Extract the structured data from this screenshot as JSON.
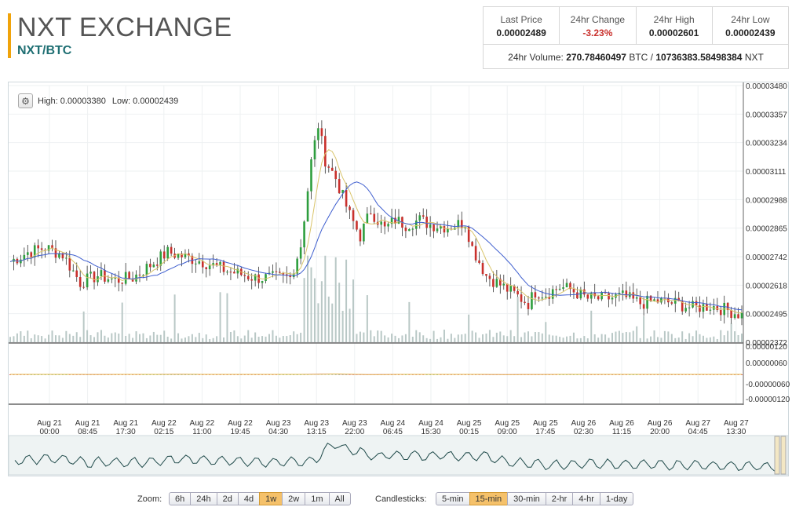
{
  "header": {
    "title": "NXT EXCHANGE",
    "pair": "NXT/BTC"
  },
  "stats": [
    {
      "label": "Last Price",
      "value": "0.00002489",
      "negative": false
    },
    {
      "label": "24hr Change",
      "value": "-3.23%",
      "negative": true
    },
    {
      "label": "24hr High",
      "value": "0.00002601",
      "negative": false
    },
    {
      "label": "24hr Low",
      "value": "0.00002439",
      "negative": false
    }
  ],
  "volume": {
    "prefix": "24hr Volume:",
    "btc": "270.78460497",
    "btc_unit": "BTC /",
    "nxt": "10736383.58498384",
    "nxt_unit": "NXT"
  },
  "chart_info": {
    "high_label": "High: 0.00003380",
    "low_label": "Low: 0.00002439"
  },
  "chart_data": {
    "type": "candlestick",
    "price_ticks": [
      "0.00003480",
      "0.00003357",
      "0.00003234",
      "0.00003111",
      "0.00002988",
      "0.00002865",
      "0.00002742",
      "0.00002618",
      "0.00002495",
      "0.00002372"
    ],
    "macd_ticks": [
      "0.00000120",
      "0.00000060",
      "-0.00000060",
      "-0.00000120"
    ],
    "x_ticks": [
      [
        "Aug 21",
        "00:00"
      ],
      [
        "Aug 21",
        "08:45"
      ],
      [
        "Aug 21",
        "17:30"
      ],
      [
        "Aug 22",
        "02:15"
      ],
      [
        "Aug 22",
        "11:00"
      ],
      [
        "Aug 22",
        "19:45"
      ],
      [
        "Aug 23",
        "04:30"
      ],
      [
        "Aug 23",
        "13:15"
      ],
      [
        "Aug 23",
        "22:00"
      ],
      [
        "Aug 24",
        "06:45"
      ],
      [
        "Aug 24",
        "15:30"
      ],
      [
        "Aug 25",
        "00:15"
      ],
      [
        "Aug 25",
        "09:00"
      ],
      [
        "Aug 25",
        "17:45"
      ],
      [
        "Aug 26",
        "02:30"
      ],
      [
        "Aug 26",
        "11:15"
      ],
      [
        "Aug 26",
        "20:00"
      ],
      [
        "Aug 27",
        "04:45"
      ],
      [
        "Aug 27",
        "13:30"
      ]
    ],
    "price_min": 2.372e-05,
    "price_max": 3.48e-05,
    "high": 3.38e-05,
    "low": 2.439e-05,
    "close_path": [
      [
        0,
        2.72e-05
      ],
      [
        5,
        2.76e-05
      ],
      [
        10,
        2.78e-05
      ],
      [
        15,
        2.75e-05
      ],
      [
        20,
        2.63e-05
      ],
      [
        25,
        2.66e-05
      ],
      [
        30,
        2.64e-05
      ],
      [
        35,
        2.65e-05
      ],
      [
        45,
        2.76e-05
      ],
      [
        50,
        2.74e-05
      ],
      [
        55,
        2.72e-05
      ],
      [
        62,
        2.68e-05
      ],
      [
        70,
        2.65e-05
      ],
      [
        80,
        2.65e-05
      ],
      [
        83,
        2.79e-05
      ],
      [
        86,
        3.15e-05
      ],
      [
        88,
        3.31e-05
      ],
      [
        90,
        3.16e-05
      ],
      [
        93,
        3.08e-05
      ],
      [
        97,
        2.92e-05
      ],
      [
        100,
        2.83e-05
      ],
      [
        103,
        2.94e-05
      ],
      [
        107,
        2.86e-05
      ],
      [
        110,
        2.9e-05
      ],
      [
        113,
        2.88e-05
      ],
      [
        117,
        2.9e-05
      ],
      [
        120,
        2.88e-05
      ],
      [
        125,
        2.87e-05
      ],
      [
        130,
        2.89e-05
      ],
      [
        132,
        2.78e-05
      ],
      [
        136,
        2.66e-05
      ],
      [
        140,
        2.62e-05
      ],
      [
        144,
        2.58e-05
      ],
      [
        148,
        2.54e-05
      ],
      [
        150,
        2.59e-05
      ],
      [
        153,
        2.58e-05
      ],
      [
        157,
        2.61e-05
      ],
      [
        160,
        2.6e-05
      ],
      [
        165,
        2.56e-05
      ],
      [
        170,
        2.56e-05
      ],
      [
        175,
        2.57e-05
      ],
      [
        180,
        2.54e-05
      ],
      [
        185,
        2.55e-05
      ],
      [
        190,
        2.54e-05
      ],
      [
        195,
        2.52e-05
      ],
      [
        200,
        2.53e-05
      ],
      [
        205,
        2.51e-05
      ],
      [
        209,
        2.489e-05
      ]
    ]
  },
  "controls": {
    "zoom_label": "Zoom:",
    "zoom": [
      {
        "label": "6h",
        "active": false
      },
      {
        "label": "24h",
        "active": false
      },
      {
        "label": "2d",
        "active": false
      },
      {
        "label": "4d",
        "active": false
      },
      {
        "label": "1w",
        "active": true
      },
      {
        "label": "2w",
        "active": false
      },
      {
        "label": "1m",
        "active": false
      },
      {
        "label": "All",
        "active": false
      }
    ],
    "candles_label": "Candlesticks:",
    "candles": [
      {
        "label": "5-min",
        "active": false
      },
      {
        "label": "15-min",
        "active": true
      },
      {
        "label": "30-min",
        "active": false
      },
      {
        "label": "2-hr",
        "active": false
      },
      {
        "label": "4-hr",
        "active": false
      },
      {
        "label": "1-day",
        "active": false
      }
    ]
  },
  "colors": {
    "accent": "#f0a30a",
    "pair": "#1f6f73",
    "up": "#2e9e3e",
    "down": "#c9302c",
    "ma_fast": "#d9c46a",
    "ma_slow": "#3f5fcf",
    "volume": "#b9c8c6"
  }
}
